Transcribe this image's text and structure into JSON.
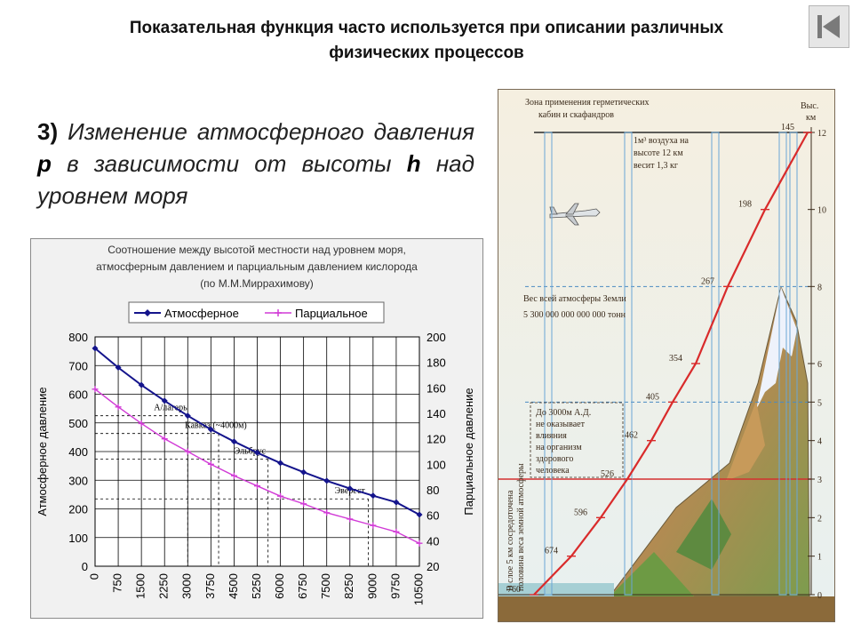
{
  "slide": {
    "title_line1": "Показательная функция часто используется при описании различных",
    "title_line2": "физических процессов",
    "subtitle": {
      "number": "3)",
      "part1": "Изменение атмосферного давления",
      "var_p": "p",
      "part2": "в зависимости от высоты",
      "var_h": "h",
      "part3": "над уровнем моря"
    }
  },
  "nav": {
    "icon": "back-to-start-icon"
  },
  "chart_data": {
    "type": "line",
    "title_lines": [
      "Соотношение между высотой местности над уровнем моря,",
      "атмосферным давлением и парциальным давлением кислорода",
      "(по М.М.Миррахимову)"
    ],
    "x": [
      0,
      750,
      1500,
      2250,
      3000,
      3750,
      4500,
      5250,
      6000,
      6750,
      7500,
      8250,
      9000,
      9750,
      10500
    ],
    "xlim": [
      0,
      10500
    ],
    "ylabel": "Атмосферное давление",
    "ylim": [
      0,
      800
    ],
    "y_ticks": [
      0,
      100,
      200,
      300,
      400,
      500,
      600,
      700,
      800
    ],
    "y2label": "Парциальное давление",
    "y2lim": [
      20,
      200
    ],
    "y2_ticks": [
      20,
      40,
      60,
      80,
      100,
      120,
      140,
      160,
      180,
      200
    ],
    "grid": true,
    "legend_position": "top",
    "series": [
      {
        "name": "Атмосферное",
        "axis": "left",
        "color": "#14148c",
        "marker": "diamond",
        "values": [
          760,
          693,
          632,
          577,
          525,
          477,
          435,
          396,
          360,
          328,
          298,
          271,
          246,
          223,
          180
        ]
      },
      {
        "name": "Парциальное",
        "axis": "right",
        "color": "#d13bd6",
        "marker": "plus",
        "values": [
          159,
          145,
          132,
          120,
          110,
          100,
          91,
          83,
          75,
          69,
          62,
          57,
          52,
          47,
          38
        ]
      }
    ],
    "annotations": [
      {
        "text": "А/лагерь",
        "x": 3000,
        "y": 525
      },
      {
        "text": "Кавказ (~4000м)",
        "x": 4000,
        "y": 463
      },
      {
        "text": "Эльбрус",
        "x": 5600,
        "y": 374
      },
      {
        "text": "Эверест",
        "x": 8848,
        "y": 235
      }
    ]
  },
  "illustration": {
    "header_line1": "Зона применения герметических",
    "header_line2": "кабин и скафандров",
    "axis_label_line1": "Выс.",
    "axis_label_line2": "км",
    "alt_ticks": [
      "0",
      "1",
      "2",
      "3",
      "4",
      "5",
      "6",
      "8",
      "10",
      "12"
    ],
    "alt_values": [
      0,
      1,
      2,
      3,
      4,
      5,
      6,
      8,
      10,
      12
    ],
    "pressure_labels": [
      "760",
      "674",
      "596",
      "526",
      "462",
      "405",
      "354",
      "267",
      "198",
      "145"
    ],
    "air_note": [
      "1м³ воздуха на",
      "высоте 12 км",
      "весит 1,3 кг"
    ],
    "weight_note": [
      "Вес всей атмосферы Земли",
      "5 300 000 000 000 000 тонн"
    ],
    "health_note": [
      "До 3000м А.Д.",
      "не оказывает",
      "влияния",
      "на организм",
      "здорового",
      "человека"
    ],
    "vertical_note": [
      "В слое 5 км сосредоточена",
      "половина веса земной атмосферы"
    ]
  }
}
